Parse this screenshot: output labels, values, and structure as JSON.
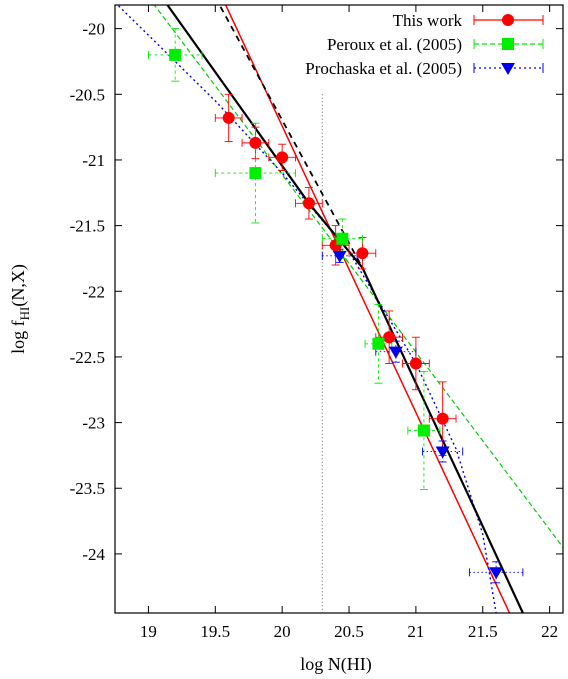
{
  "chart_data": {
    "type": "scatter",
    "xlabel": "log N(HI)",
    "ylabel_main": "log f",
    "ylabel_sub": "HI",
    "ylabel_tail": "(N,X)",
    "xlim": [
      18.75,
      22.1
    ],
    "ylim": [
      -24.45,
      -19.82
    ],
    "x_ticks": [
      19,
      19.5,
      20,
      20.5,
      21,
      21.5,
      22
    ],
    "x_tick_labels": [
      "19",
      "19.5",
      "20",
      "20.5",
      "21",
      "21.5",
      "22"
    ],
    "y_ticks": [
      -20,
      -20.5,
      -21,
      -21.5,
      -22,
      -22.5,
      -23,
      -23.5,
      -24
    ],
    "y_tick_labels": [
      "-20",
      "-20.5",
      "-21",
      "-21.5",
      "-22",
      "-22.5",
      "-23",
      "-23.5",
      "-24"
    ],
    "grid": false,
    "legend_position": "top-right",
    "vline_x": 20.3,
    "series": [
      {
        "name": "This work",
        "color": "#ff0000",
        "marker": "circle",
        "x": [
          19.6,
          19.8,
          20.0,
          20.2,
          20.4,
          20.6,
          20.8,
          21.0,
          21.2
        ],
        "y": [
          -20.68,
          -20.87,
          -20.98,
          -21.33,
          -21.65,
          -21.71,
          -22.35,
          -22.55,
          -22.97
        ],
        "xerr": [
          0.1,
          0.1,
          0.1,
          0.1,
          0.1,
          0.1,
          0.1,
          0.1,
          0.1
        ],
        "yerr": [
          0.18,
          0.12,
          0.1,
          0.12,
          0.15,
          0.12,
          0.2,
          0.2,
          0.28
        ]
      },
      {
        "name": "Peroux et al. (2005)",
        "color": "#00ee00",
        "marker": "square",
        "x": [
          19.2,
          19.8,
          20.45,
          20.72,
          21.06
        ],
        "y": [
          -20.2,
          -21.1,
          -21.6,
          -22.4,
          -23.06
        ],
        "xerr": [
          0.2,
          0.3,
          0.15,
          0.1,
          0.12
        ],
        "yerr": [
          0.2,
          0.38,
          0.15,
          0.3,
          0.45
        ]
      },
      {
        "name": "Prochaska et al. (2005)",
        "color": "#0000ee",
        "marker": "triangle-down",
        "x": [
          20.43,
          20.85,
          21.2,
          21.6
        ],
        "y": [
          -21.73,
          -22.46,
          -23.22,
          -24.14
        ],
        "xerr": [
          0.13,
          0.15,
          0.15,
          0.2
        ],
        "yerr": [
          0.05,
          0.08,
          0.08,
          0.08
        ]
      }
    ],
    "fit_lines": [
      {
        "style": "solid-red",
        "color": "#ff0000",
        "points": [
          [
            19.55,
            -19.76
          ],
          [
            21.7,
            -24.45
          ]
        ]
      },
      {
        "style": "dashed-black",
        "color": "#000000",
        "points": [
          [
            19.5,
            -19.76
          ],
          [
            20.6,
            -21.82
          ]
        ]
      },
      {
        "style": "dashed-green",
        "color": "#00cc00",
        "points": [
          [
            19.0,
            -19.76
          ],
          [
            22.1,
            -23.95
          ]
        ]
      },
      {
        "style": "dotted-blue",
        "color": "#0000ee",
        "points": [
          [
            18.75,
            -19.8
          ],
          [
            19.5,
            -20.55
          ],
          [
            20.0,
            -21.1
          ],
          [
            20.5,
            -21.7
          ],
          [
            21.0,
            -22.55
          ],
          [
            21.3,
            -23.2
          ],
          [
            21.5,
            -23.85
          ],
          [
            21.6,
            -24.45
          ]
        ]
      },
      {
        "style": "solid-black",
        "color": "#000000",
        "points": [
          [
            19.1,
            -19.76
          ],
          [
            20.2,
            -21.33
          ],
          [
            20.6,
            -21.82
          ],
          [
            21.0,
            -22.7
          ],
          [
            21.4,
            -23.57
          ],
          [
            21.8,
            -24.45
          ]
        ]
      }
    ]
  }
}
